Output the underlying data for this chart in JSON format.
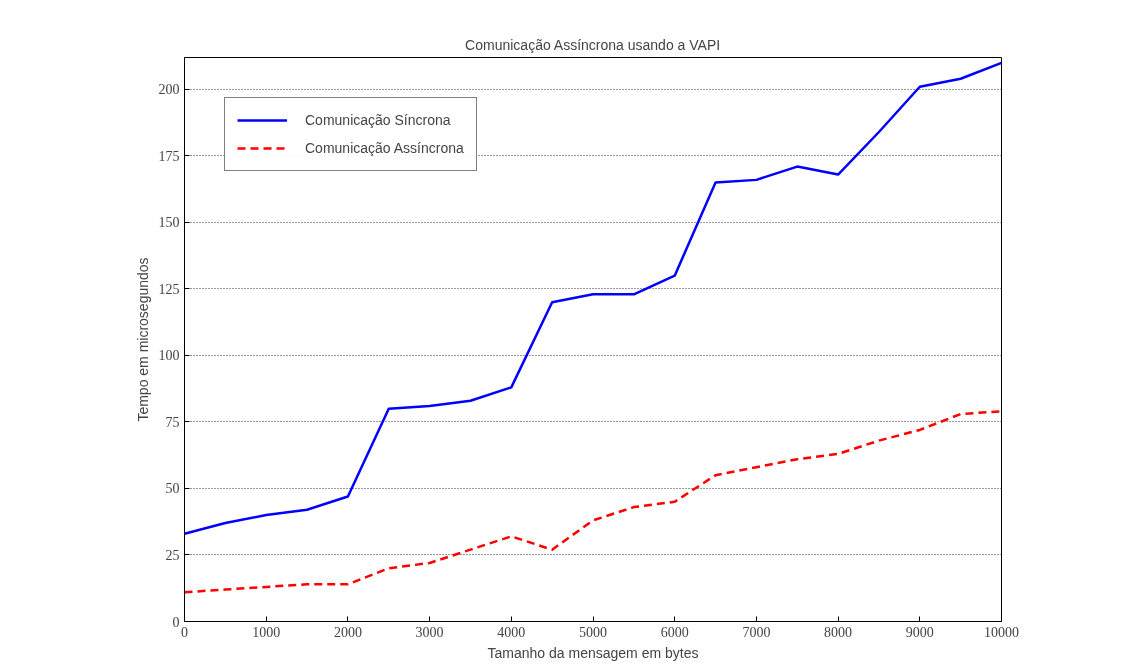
{
  "chart_data": {
    "type": "line",
    "title": "Comunicação Assíncrona usando a VAPI",
    "xlabel": "Tamanho da mensagem em bytes",
    "ylabel": "Tempo em microsegundos",
    "x": [
      0,
      500,
      1000,
      1500,
      2000,
      2500,
      3000,
      3500,
      4000,
      4500,
      5000,
      5500,
      6000,
      6500,
      7000,
      7500,
      8000,
      8500,
      9000,
      9500,
      10000
    ],
    "series": [
      {
        "name": "Comunicação Síncrona",
        "color": "#0000ff",
        "line_style": "solid",
        "values": [
          33,
          37,
          40,
          42,
          47,
          80,
          81,
          83,
          88,
          120,
          123,
          123,
          130,
          165,
          166,
          171,
          168,
          184,
          201,
          204,
          210
        ]
      },
      {
        "name": "Comunicação Assíncrona",
        "color": "#ff0000",
        "line_style": "dashed",
        "values": [
          11,
          12,
          13,
          14,
          14,
          20,
          22,
          27,
          32,
          27,
          38,
          43,
          45,
          55,
          58,
          61,
          63,
          68,
          72,
          78,
          79
        ]
      }
    ],
    "xlim": [
      0,
      10000
    ],
    "xticks": [
      0,
      1000,
      2000,
      3000,
      4000,
      5000,
      6000,
      7000,
      8000,
      9000,
      10000
    ],
    "ylim": [
      0,
      212
    ],
    "yticks": [
      0,
      25,
      50,
      75,
      100,
      125,
      150,
      175,
      200
    ],
    "grid": "y",
    "legend": "top left",
    "marker": "none"
  }
}
